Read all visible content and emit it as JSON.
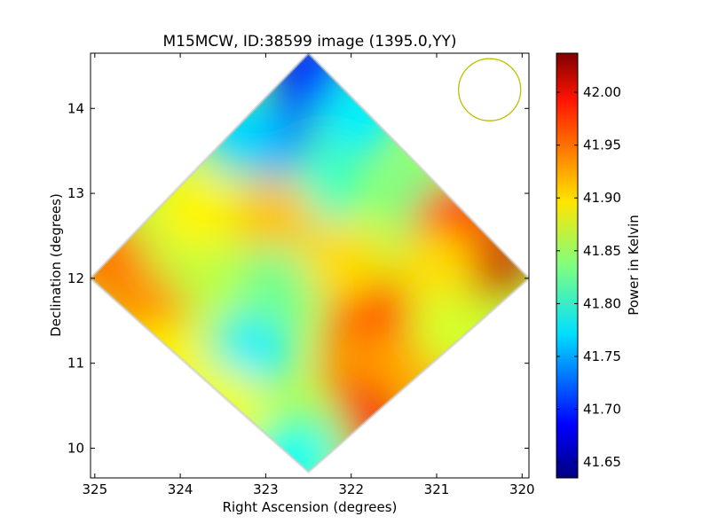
{
  "chart_data": {
    "type": "heatmap",
    "title": "M15MCW, ID:38599 image (1395.0,YY)",
    "xlabel": "Right Ascension (degrees)",
    "ylabel": "Declination (degrees)",
    "xlim": [
      325.05,
      319.92
    ],
    "ylim": [
      9.65,
      14.65
    ],
    "x_ticks": [
      325,
      324,
      323,
      322,
      321,
      320
    ],
    "y_ticks": [
      10,
      11,
      12,
      13,
      14
    ],
    "x_tick_labels": [
      "325",
      "324",
      "323",
      "322",
      "321",
      "320"
    ],
    "y_tick_labels": [
      "10",
      "11",
      "12",
      "13",
      "14"
    ],
    "grid": false,
    "colormap": "jet",
    "colorbar": {
      "label": "Power in Kelvin",
      "vmin": 41.635,
      "vmax": 42.037,
      "ticks": [
        41.65,
        41.7,
        41.75,
        41.8,
        41.85,
        41.9,
        41.95,
        42.0
      ],
      "tick_labels": [
        "41.65",
        "41.70",
        "41.75",
        "41.80",
        "41.85",
        "41.90",
        "41.95",
        "42.00"
      ]
    },
    "footprint": {
      "shape": "diamond",
      "vertices": [
        [
          322.5,
          14.65
        ],
        [
          319.92,
          12.0
        ],
        [
          322.5,
          9.72
        ],
        [
          325.05,
          12.0
        ]
      ]
    },
    "beam_circle": {
      "ra": 320.38,
      "dec": 14.22,
      "color": "#bfbf00"
    },
    "regions": [
      {
        "ra": 322.5,
        "dec": 14.45,
        "value": 41.7
      },
      {
        "ra": 322.9,
        "dec": 13.65,
        "value": 41.73
      },
      {
        "ra": 323.3,
        "dec": 13.7,
        "value": 41.77
      },
      {
        "ra": 321.9,
        "dec": 13.9,
        "value": 41.78
      },
      {
        "ra": 322.3,
        "dec": 13.1,
        "value": 41.81
      },
      {
        "ra": 321.2,
        "dec": 13.0,
        "value": 41.83
      },
      {
        "ra": 320.45,
        "dec": 12.2,
        "value": 42.01
      },
      {
        "ra": 320.8,
        "dec": 12.65,
        "value": 41.97
      },
      {
        "ra": 321.0,
        "dec": 12.1,
        "value": 41.9
      },
      {
        "ra": 321.8,
        "dec": 11.55,
        "value": 41.97
      },
      {
        "ra": 321.9,
        "dec": 11.0,
        "value": 41.93
      },
      {
        "ra": 321.85,
        "dec": 10.25,
        "value": 41.99
      },
      {
        "ra": 321.2,
        "dec": 10.95,
        "value": 41.92
      },
      {
        "ra": 320.8,
        "dec": 11.4,
        "value": 41.87
      },
      {
        "ra": 322.45,
        "dec": 10.05,
        "value": 41.84
      },
      {
        "ra": 322.7,
        "dec": 9.85,
        "value": 41.79
      },
      {
        "ra": 323.7,
        "dec": 12.0,
        "value": 41.86
      },
      {
        "ra": 324.2,
        "dec": 12.5,
        "value": 41.86
      },
      {
        "ra": 323.15,
        "dec": 11.15,
        "value": 41.78
      },
      {
        "ra": 322.9,
        "dec": 12.7,
        "value": 41.91
      },
      {
        "ra": 323.8,
        "dec": 12.8,
        "value": 41.89
      },
      {
        "ra": 324.85,
        "dec": 12.2,
        "value": 41.94
      },
      {
        "ra": 324.4,
        "dec": 11.6,
        "value": 41.93
      },
      {
        "ra": 324.2,
        "dec": 11.0,
        "value": 41.89
      },
      {
        "ra": 323.5,
        "dec": 10.5,
        "value": 41.88
      },
      {
        "ra": 322.85,
        "dec": 11.9,
        "value": 41.83
      },
      {
        "ra": 322.1,
        "dec": 12.2,
        "value": 41.9
      }
    ]
  }
}
